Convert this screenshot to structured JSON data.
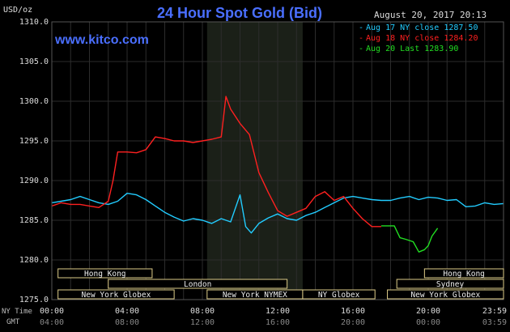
{
  "header": {
    "unit_label": "USD/oz",
    "title": "24 Hour Spot Gold (Bid)",
    "timestamp": "August 20, 2017 20:13",
    "watermark": "www.kitco.com"
  },
  "legend": [
    {
      "label": "Aug 17 NY close 1287.50",
      "color": "#22ccff"
    },
    {
      "label": "Aug 18 NY close 1284.20",
      "color": "#ff2020"
    },
    {
      "label": "Aug 20 Last 1283.90",
      "color": "#22dd22"
    }
  ],
  "bottom": {
    "ny_time_label": "NY Time",
    "gmt_label": "GMT",
    "ny_ticks": [
      "00:00",
      "04:00",
      "08:00",
      "12:00",
      "16:00",
      "20:00",
      "23:59"
    ],
    "gmt_ticks": [
      "04:00",
      "08:00",
      "12:00",
      "16:00",
      "20:00",
      "00:00",
      "03:59"
    ]
  },
  "sessions": {
    "row1": [
      {
        "label": "Hong Kong",
        "start": 0.33,
        "end": 5.33
      },
      {
        "label": "Hong Kong",
        "start": 19.8,
        "end": 24
      }
    ],
    "row2": [
      {
        "label": "London",
        "start": 3,
        "end": 12.5
      },
      {
        "label": "Sydney",
        "start": 18.33,
        "end": 24
      }
    ],
    "row3": [
      {
        "label": "New York Globex",
        "start": 0.33,
        "end": 6.5
      },
      {
        "label": "New York NYMEX",
        "start": 8.25,
        "end": 13.33
      },
      {
        "label": "NY Globex",
        "start": 13.33,
        "end": 17.17
      },
      {
        "label": "New York Globex",
        "start": 17.83,
        "end": 24
      }
    ]
  },
  "colors": {
    "background": "#000000",
    "grid": "#2c2c2c",
    "nymex_shade": "#1b2018",
    "title": "#4a6fff",
    "axis_text": "#dddddd",
    "session_box": "#ddcc88"
  },
  "chart_data": {
    "type": "line",
    "ylim": [
      1275,
      1310
    ],
    "xlim": [
      0,
      24
    ],
    "yticks": [
      1275.0,
      1280.0,
      1285.0,
      1290.0,
      1295.0,
      1300.0,
      1305.0,
      1310.0
    ],
    "ytick_labels": [
      "1275.0",
      "1280.0",
      "1285.0",
      "1290.0",
      "1295.0",
      "1300.0",
      "1305.0",
      "1310.0"
    ],
    "grid": true,
    "shaded_region": [
      8.25,
      13.33
    ],
    "series": [
      {
        "name": "Aug 17 NY close 1287.50",
        "color": "#22ccff",
        "x": [
          0,
          0.5,
          1,
          1.5,
          2,
          2.5,
          3,
          3.5,
          4,
          4.5,
          5,
          5.5,
          6,
          6.5,
          7,
          7.5,
          8,
          8.5,
          9,
          9.5,
          10,
          10.3,
          10.6,
          11,
          11.5,
          12,
          12.5,
          13,
          13.5,
          14,
          14.5,
          15,
          15.5,
          16,
          16.5,
          17,
          17.5,
          18,
          18.5,
          19,
          19.5,
          20,
          20.5,
          21,
          21.5,
          22,
          22.5,
          23,
          23.5,
          24
        ],
        "y": [
          1287.2,
          1287.4,
          1287.6,
          1288.0,
          1287.6,
          1287.2,
          1287.0,
          1287.4,
          1288.4,
          1288.2,
          1287.6,
          1286.8,
          1286.0,
          1285.4,
          1284.9,
          1285.2,
          1285.0,
          1284.6,
          1285.2,
          1284.8,
          1288.2,
          1284.2,
          1283.4,
          1284.6,
          1285.3,
          1285.8,
          1285.2,
          1285.0,
          1285.6,
          1286.0,
          1286.6,
          1287.2,
          1287.8,
          1288.0,
          1287.8,
          1287.6,
          1287.5,
          1287.5,
          1287.8,
          1288.0,
          1287.6,
          1287.9,
          1287.8,
          1287.5,
          1287.6,
          1286.7,
          1286.8,
          1287.2,
          1287.0,
          1287.1
        ]
      },
      {
        "name": "Aug 18 NY close 1284.20",
        "color": "#ff2020",
        "x": [
          0,
          0.5,
          1,
          1.5,
          2,
          2.5,
          3,
          3.25,
          3.5,
          4,
          4.5,
          5,
          5.5,
          6,
          6.5,
          7,
          7.5,
          8,
          8.5,
          9,
          9.25,
          9.5,
          10,
          10.5,
          11,
          11.5,
          12,
          12.5,
          13,
          13.5,
          14,
          14.5,
          15,
          15.5,
          16,
          16.5,
          17,
          17.5
        ],
        "y": [
          1286.8,
          1287.2,
          1287.0,
          1287.0,
          1286.8,
          1286.6,
          1287.4,
          1290.0,
          1293.6,
          1293.6,
          1293.5,
          1293.9,
          1295.5,
          1295.3,
          1295.0,
          1295.0,
          1294.8,
          1295.0,
          1295.2,
          1295.5,
          1300.6,
          1299.0,
          1297.2,
          1295.8,
          1291.0,
          1288.5,
          1286.2,
          1285.5,
          1286.0,
          1286.5,
          1288.0,
          1288.6,
          1287.5,
          1288.0,
          1286.5,
          1285.2,
          1284.2,
          1284.2
        ]
      },
      {
        "name": "Aug 20 Last 1283.90",
        "color": "#22dd22",
        "x": [
          17.5,
          18.2,
          18.5,
          18.8,
          19.2,
          19.5,
          19.8,
          20.0,
          20.2,
          20.5
        ],
        "y": [
          1284.3,
          1284.3,
          1282.8,
          1282.6,
          1282.3,
          1281.0,
          1281.3,
          1281.8,
          1283.0,
          1284.0
        ]
      }
    ]
  }
}
